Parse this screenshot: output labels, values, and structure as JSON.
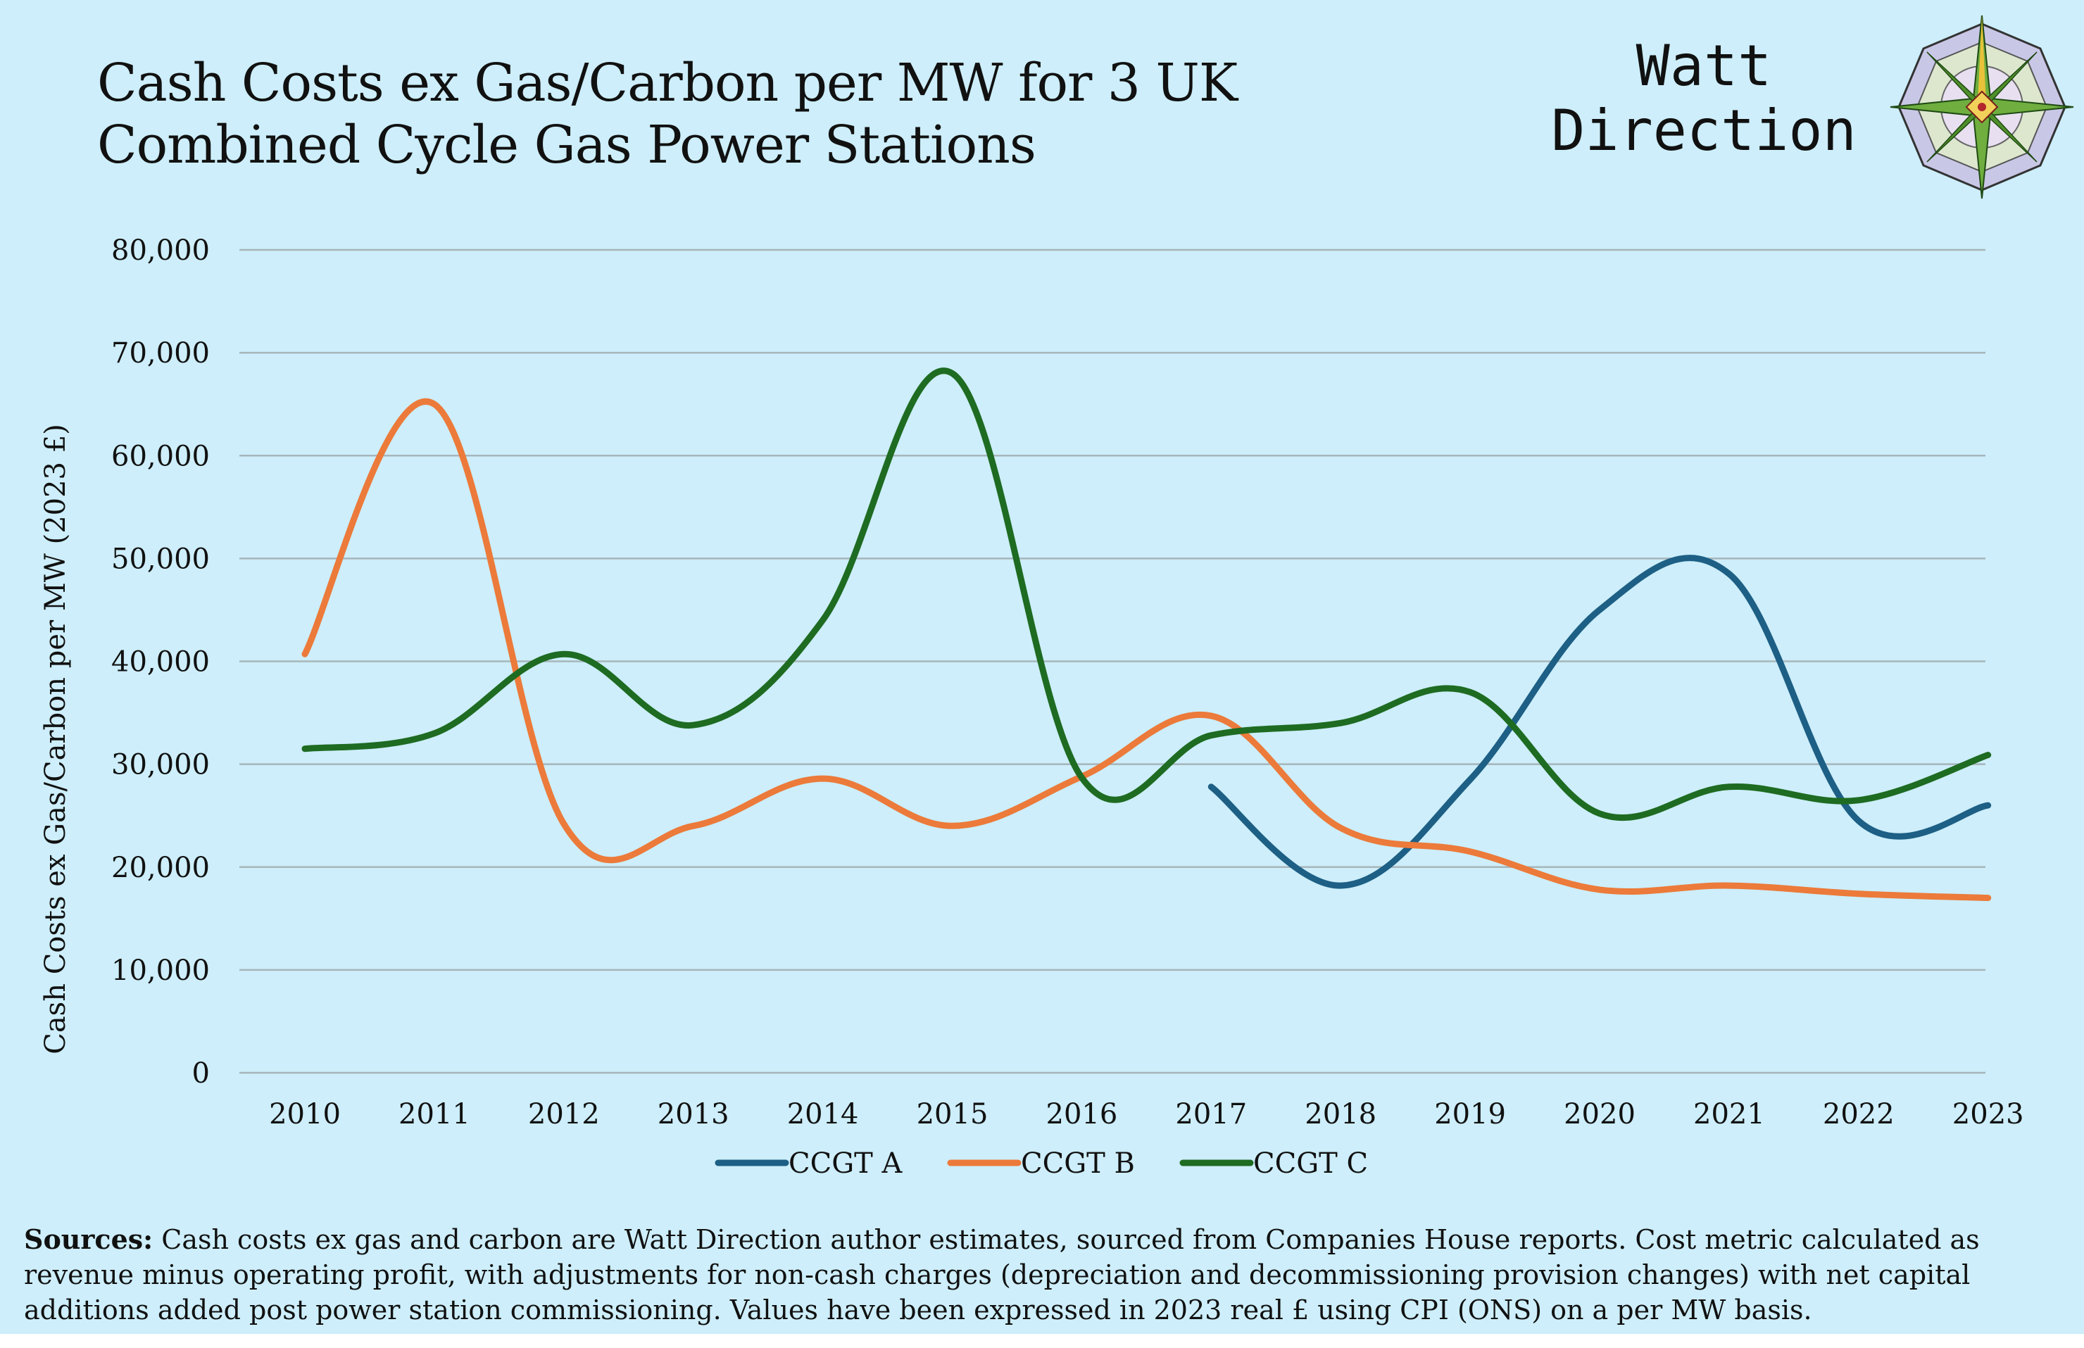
{
  "header": {
    "title_line1": "Cash Costs ex Gas/Carbon per MW for 3 UK",
    "title_line2": "Combined Cycle Gas  Power Stations",
    "brand_line1": "Watt",
    "brand_line2": "Direction"
  },
  "chart_data": {
    "type": "line",
    "ylabel": "Cash Costs ex Gas/Carbon per MW (2023 £)",
    "ylim": [
      0,
      80000
    ],
    "ytick_values": [
      0,
      10000,
      20000,
      30000,
      40000,
      50000,
      60000,
      70000,
      80000
    ],
    "ytick_labels": [
      "0",
      "10,000",
      "20,000",
      "30,000",
      "40,000",
      "50,000",
      "60,000",
      "70,000",
      "80,000"
    ],
    "categories": [
      "2010",
      "2011",
      "2012",
      "2013",
      "2014",
      "2015",
      "2016",
      "2017",
      "2018",
      "2019",
      "2020",
      "2021",
      "2022",
      "2023"
    ],
    "grid": true,
    "smooth": true,
    "legend_position": "bottom",
    "series": [
      {
        "name": "CCGT A",
        "color": "#1d5f85",
        "values": [
          null,
          null,
          null,
          null,
          null,
          null,
          null,
          27800,
          18200,
          28500,
          45000,
          48500,
          24500,
          26000
        ]
      },
      {
        "name": "CCGT B",
        "color": "#ec7a3a",
        "values": [
          40700,
          65000,
          24200,
          24000,
          28600,
          24000,
          28800,
          34700,
          23800,
          21500,
          17800,
          18200,
          17400,
          17000
        ]
      },
      {
        "name": "CCGT C",
        "color": "#1e6b22",
        "values": [
          31500,
          33000,
          40700,
          33800,
          44000,
          68000,
          28700,
          32800,
          34000,
          37000,
          25200,
          27800,
          26500,
          30900
        ]
      }
    ]
  },
  "footer": {
    "sources_label": "Sources:",
    "sources_text": " Cash costs ex gas and carbon are Watt Direction author estimates, sourced from Companies House reports. Cost metric calculated as revenue minus operating profit, with adjustments for non-cash charges (depreciation and decommissioning provision changes) with net capital additions added post power station commissioning. Values have been expressed in 2023 real £ using CPI (ONS) on a per MW basis."
  },
  "colors": {
    "background": "#cdeefa",
    "gridline": "#a6b5ba",
    "text": "#111111"
  },
  "logo_icon": "compass-rose-icon"
}
